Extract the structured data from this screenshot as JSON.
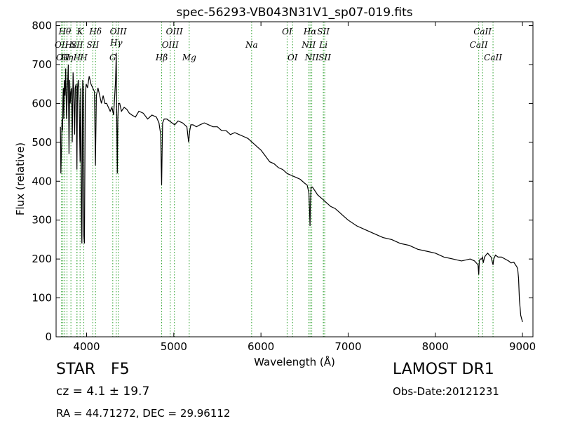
{
  "chart_data": {
    "type": "line",
    "title": "spec-56293-VB043N31V1_sp07-019.fits",
    "xlabel": "Wavelength (Å)",
    "ylabel": "Flux (relative)",
    "xlim": [
      3650,
      9120
    ],
    "ylim": [
      0,
      810
    ],
    "xticks": [
      4000,
      5000,
      6000,
      7000,
      8000,
      9000
    ],
    "yticks": [
      0,
      100,
      200,
      300,
      400,
      500,
      600,
      700,
      800
    ],
    "grid": false,
    "line_color": "#000000",
    "marker_color": "#2ca02c",
    "series": [
      {
        "x": [
          3700,
          3705,
          3712,
          3718,
          3723,
          3728,
          3733,
          3738,
          3745,
          3752,
          3760,
          3770,
          3780,
          3790,
          3798,
          3806,
          3812,
          3820,
          3828,
          3835,
          3845,
          3855,
          3862,
          3870,
          3880,
          3889,
          3895,
          3905,
          3915,
          3925,
          3933,
          3940,
          3946,
          3955,
          3962,
          3968,
          3975,
          3985,
          3995,
          4010,
          4030,
          4050,
          4070,
          4090,
          4101,
          4112,
          4130,
          4150,
          4170,
          4190,
          4210,
          4230,
          4250,
          4270,
          4290,
          4310,
          4320,
          4332,
          4340,
          4346,
          4352,
          4358,
          4365,
          4380,
          4400,
          4430,
          4460,
          4490,
          4520,
          4560,
          4600,
          4650,
          4700,
          4750,
          4800,
          4830,
          4850,
          4856,
          4861,
          4866,
          4872,
          4890,
          4920,
          4950,
          4980,
          5010,
          5050,
          5100,
          5150,
          5170,
          5183,
          5195,
          5220,
          5260,
          5300,
          5350,
          5400,
          5450,
          5500,
          5550,
          5600,
          5650,
          5700,
          5750,
          5800,
          5850,
          5900,
          5950,
          6000,
          6050,
          6100,
          6150,
          6200,
          6250,
          6300,
          6350,
          6400,
          6450,
          6500,
          6530,
          6550,
          6558,
          6563,
          6568,
          6575,
          6590,
          6620,
          6650,
          6700,
          6750,
          6800,
          6850,
          6900,
          6950,
          7000,
          7100,
          7200,
          7300,
          7400,
          7500,
          7600,
          7700,
          7800,
          7900,
          8000,
          8100,
          8200,
          8300,
          8400,
          8450,
          8490,
          8498,
          8505,
          8515,
          8530,
          8542,
          8550,
          8565,
          8580,
          8600,
          8620,
          8640,
          8662,
          8670,
          8690,
          8720,
          8760,
          8800,
          8840,
          8870,
          8900,
          8920,
          8935,
          8945,
          8955,
          8965,
          8980,
          9000
        ],
        "y": [
          540,
          420,
          480,
          560,
          530,
          610,
          640,
          560,
          660,
          620,
          690,
          560,
          640,
          700,
          470,
          660,
          600,
          630,
          640,
          500,
          680,
          610,
          520,
          640,
          650,
          430,
          640,
          660,
          600,
          450,
          640,
          300,
          240,
          660,
          640,
          260,
          240,
          620,
          650,
          640,
          670,
          650,
          640,
          630,
          440,
          620,
          640,
          620,
          600,
          620,
          600,
          600,
          590,
          580,
          590,
          570,
          610,
          660,
          730,
          550,
          420,
          560,
          600,
          600,
          580,
          590,
          585,
          575,
          570,
          565,
          580,
          575,
          560,
          570,
          565,
          550,
          520,
          440,
          390,
          480,
          550,
          560,
          560,
          555,
          550,
          545,
          555,
          550,
          540,
          500,
          530,
          545,
          545,
          540,
          545,
          550,
          545,
          540,
          540,
          530,
          530,
          520,
          525,
          520,
          515,
          510,
          500,
          490,
          480,
          465,
          450,
          445,
          435,
          430,
          420,
          415,
          410,
          405,
          395,
          390,
          370,
          320,
          285,
          340,
          385,
          385,
          375,
          365,
          355,
          345,
          335,
          330,
          320,
          310,
          300,
          285,
          275,
          265,
          255,
          250,
          240,
          235,
          225,
          220,
          215,
          205,
          200,
          195,
          200,
          195,
          185,
          160,
          195,
          200,
          200,
          205,
          190,
          205,
          210,
          215,
          210,
          205,
          185,
          200,
          210,
          205,
          205,
          200,
          195,
          190,
          192,
          185,
          180,
          175,
          150,
          95,
          55,
          38
        ]
      }
    ],
    "line_markers": [
      {
        "x": 3712,
        "label": "OII",
        "row": 3,
        "style": "italic"
      },
      {
        "x": 3728,
        "label": "OII",
        "row": 4,
        "style": "italic"
      },
      {
        "x": 3750,
        "label": "Hθ",
        "row": 1,
        "style": "italic"
      },
      {
        "x": 3775,
        "label": "Hη",
        "row": 4,
        "style": "italic"
      },
      {
        "x": 3820,
        "label": "Hε",
        "row": 3,
        "style": "italic"
      },
      {
        "x": 3889,
        "label": "SII",
        "row": 3,
        "style": "italic"
      },
      {
        "x": 3890,
        "label": "H",
        "row": 4,
        "style": "italic"
      },
      {
        "x": 3925,
        "label": "K",
        "row": 1,
        "style": "italic"
      },
      {
        "x": 3968,
        "label": "H",
        "row": 4,
        "style": "italic"
      },
      {
        "x": 4071,
        "label": "SII",
        "row": 3,
        "style": "italic"
      },
      {
        "x": 4102,
        "label": "Hδ",
        "row": 1,
        "style": "italic"
      },
      {
        "x": 4300,
        "label": "G",
        "row": 4,
        "style": "italic"
      },
      {
        "x": 4340,
        "label": "Hγ",
        "row": 2,
        "style": "italic"
      },
      {
        "x": 4363,
        "label": "OIII",
        "row": 1,
        "style": "italic"
      },
      {
        "x": 4861,
        "label": "Hβ",
        "row": 4,
        "style": "italic"
      },
      {
        "x": 4959,
        "label": "OIII",
        "row": 3,
        "style": "italic"
      },
      {
        "x": 5007,
        "label": "OIII",
        "row": 1,
        "style": "italic"
      },
      {
        "x": 5177,
        "label": "Mg",
        "row": 4,
        "style": "italic"
      },
      {
        "x": 5893,
        "label": "Na",
        "row": 3,
        "style": "italic"
      },
      {
        "x": 6300,
        "label": "OI",
        "row": 1,
        "style": "italic"
      },
      {
        "x": 6363,
        "label": "OI",
        "row": 4,
        "style": "italic"
      },
      {
        "x": 6548,
        "label": "NII",
        "row": 3,
        "style": "italic"
      },
      {
        "x": 6563,
        "label": "Hα",
        "row": 1,
        "style": "italic"
      },
      {
        "x": 6583,
        "label": "NII",
        "row": 4,
        "style": "italic"
      },
      {
        "x": 6716,
        "label": "SII",
        "row": 1,
        "style": "italic"
      },
      {
        "x": 6716,
        "label": "Li",
        "row": 3,
        "style": "italic"
      },
      {
        "x": 6731,
        "label": "SII",
        "row": 4,
        "style": "italic"
      },
      {
        "x": 8498,
        "label": "CaII",
        "row": 3,
        "style": "italic"
      },
      {
        "x": 8542,
        "label": "CaII",
        "row": 1,
        "style": "italic"
      },
      {
        "x": 8662,
        "label": "CaII",
        "row": 4,
        "style": "italic"
      }
    ]
  },
  "info": {
    "object_class": "STAR",
    "subclass": "F5",
    "redshift": "cz = 4.1 ± 19.7",
    "coords": "RA = 44.71272, DEC = 29.96112",
    "survey": "LAMOST DR1",
    "obs_date": "Obs-Date:20121231"
  }
}
